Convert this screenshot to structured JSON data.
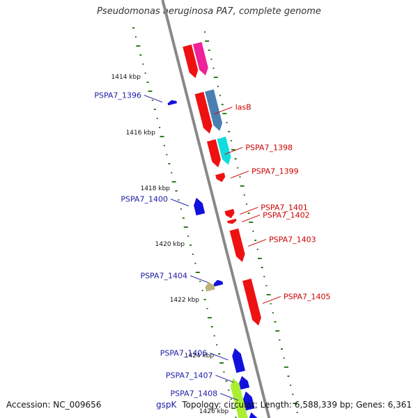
{
  "title": "Pseudomonas aeruginosa PA7, complete genome",
  "footer": {
    "accession": "Accession: NC_009656",
    "topology": "Topology: circular; Length: 6,588,339 bp; Genes: 6,361",
    "cut_label": "gspK"
  },
  "colors": {
    "backbone": "#888888",
    "gc_ticks": "#2e7d1f",
    "reverse_label": "#1a1aa6",
    "forward_label": "#cc0000"
  },
  "kbp_markers": [
    {
      "kb": 1414,
      "label": "1414 kbp"
    },
    {
      "kb": 1416,
      "label": "1416 kbp"
    },
    {
      "kb": 1418,
      "label": "1418 kbp"
    },
    {
      "kb": 1420,
      "label": "1420 kbp"
    },
    {
      "kb": 1422,
      "label": "1422 kbp"
    },
    {
      "kb": 1424,
      "label": "1424 kbp"
    },
    {
      "kb": 1426,
      "label": "1426 kbp"
    }
  ],
  "genes": [
    {
      "name": "",
      "strand": "forward",
      "track": "cds",
      "start_kb": 1413.0,
      "end_kb": 1414.2,
      "color": "#ee1111"
    },
    {
      "name": "",
      "strand": "forward",
      "track": "feature",
      "start_kb": 1413.0,
      "end_kb": 1414.2,
      "color": "#ee2299"
    },
    {
      "name": "lasB",
      "strand": "forward",
      "track": "cds",
      "start_kb": 1414.7,
      "end_kb": 1416.2,
      "color": "#ee1111"
    },
    {
      "name": "",
      "strand": "forward",
      "track": "feature",
      "start_kb": 1414.7,
      "end_kb": 1416.2,
      "color": "#4a7fb0"
    },
    {
      "name": "PSPA7_1398",
      "strand": "forward",
      "track": "cds",
      "start_kb": 1416.4,
      "end_kb": 1417.4,
      "color": "#ee1111"
    },
    {
      "name": "",
      "strand": "forward",
      "track": "feature",
      "start_kb": 1416.4,
      "end_kb": 1417.4,
      "color": "#11dddd"
    },
    {
      "name": "PSPA7_1399",
      "strand": "forward",
      "track": "cds",
      "start_kb": 1417.6,
      "end_kb": 1417.9,
      "color": "#ee1111"
    },
    {
      "name": "PSPA7_1396",
      "strand": "reverse",
      "track": "cds",
      "start_kb": 1414.7,
      "end_kb": 1414.85,
      "color": "#1111dd"
    },
    {
      "name": "PSPA7_1400",
      "strand": "reverse",
      "track": "cds",
      "start_kb": 1418.2,
      "end_kb": 1418.8,
      "color": "#1111dd"
    },
    {
      "name": "PSPA7_1401",
      "strand": "forward",
      "track": "cds",
      "start_kb": 1418.9,
      "end_kb": 1419.2,
      "color": "#ee1111"
    },
    {
      "name": "PSPA7_1402",
      "strand": "forward",
      "track": "cds",
      "start_kb": 1419.25,
      "end_kb": 1419.4,
      "color": "#ee1111"
    },
    {
      "name": "PSPA7_1403",
      "strand": "forward",
      "track": "cds",
      "start_kb": 1419.6,
      "end_kb": 1420.8,
      "color": "#ee1111"
    },
    {
      "name": "PSPA7_1404",
      "strand": "reverse",
      "track": "cds",
      "start_kb": 1421.15,
      "end_kb": 1421.35,
      "color": "#1111dd"
    },
    {
      "name": "",
      "strand": "reverse",
      "track": "feature",
      "start_kb": 1421.15,
      "end_kb": 1421.45,
      "color": "#bbb27a"
    },
    {
      "name": "PSPA7_1405",
      "strand": "forward",
      "track": "cds",
      "start_kb": 1421.4,
      "end_kb": 1423.1,
      "color": "#ee1111"
    },
    {
      "name": "PSPA7_1406",
      "strand": "reverse",
      "track": "cds",
      "start_kb": 1423.6,
      "end_kb": 1424.45,
      "color": "#1111dd"
    },
    {
      "name": "PSPA7_1407",
      "strand": "reverse",
      "track": "cds",
      "start_kb": 1424.6,
      "end_kb": 1425.05,
      "color": "#1111dd"
    },
    {
      "name": "PSPA7_1408",
      "strand": "reverse",
      "track": "cds",
      "start_kb": 1425.15,
      "end_kb": 1425.8,
      "color": "#1111dd"
    },
    {
      "name": "",
      "strand": "reverse",
      "track": "cds",
      "start_kb": 1425.9,
      "end_kb": 1426.6,
      "color": "#1111dd"
    },
    {
      "name": "",
      "strand": "reverse",
      "track": "feature",
      "start_kb": 1424.6,
      "end_kb": 1426.6,
      "color": "#aaee33"
    }
  ]
}
